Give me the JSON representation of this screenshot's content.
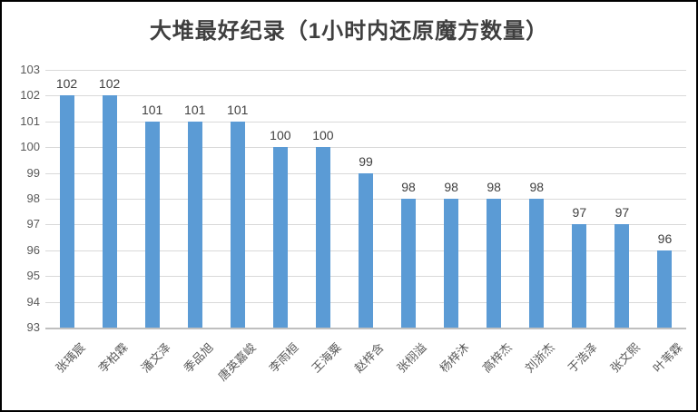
{
  "frame": {
    "background": "#ffffff",
    "border_color": "#000000"
  },
  "chart_data": {
    "type": "bar",
    "title": "大堆最好纪录（1小时内还原魔方数量）",
    "categories": [
      "张瑀宸",
      "李柏霖",
      "潘文泽",
      "季品旭",
      "唐英嘉峻",
      "李雨桓",
      "王海粟",
      "赵梓含",
      "张栩溢",
      "杨梓沐",
      "高梓杰",
      "刘浙杰",
      "于浩泽",
      "张文熙",
      "叶苇霖"
    ],
    "values": [
      102,
      102,
      101,
      101,
      101,
      100,
      100,
      99,
      98,
      98,
      98,
      98,
      97,
      97,
      96
    ],
    "xlabel": "",
    "ylabel": "",
    "ylim": [
      93,
      103
    ],
    "ytick_step": 1,
    "yticks": [
      93,
      94,
      95,
      96,
      97,
      98,
      99,
      100,
      101,
      102,
      103
    ],
    "grid": true,
    "legend_position": "none",
    "data_labels": true,
    "colors": {
      "bar": "#5b9bd5",
      "gridline": "#d9d9d9",
      "axis_line": "#bfbfbf",
      "tick_label": "#595959",
      "data_label": "#404040",
      "title": "#3f3f3f"
    }
  }
}
